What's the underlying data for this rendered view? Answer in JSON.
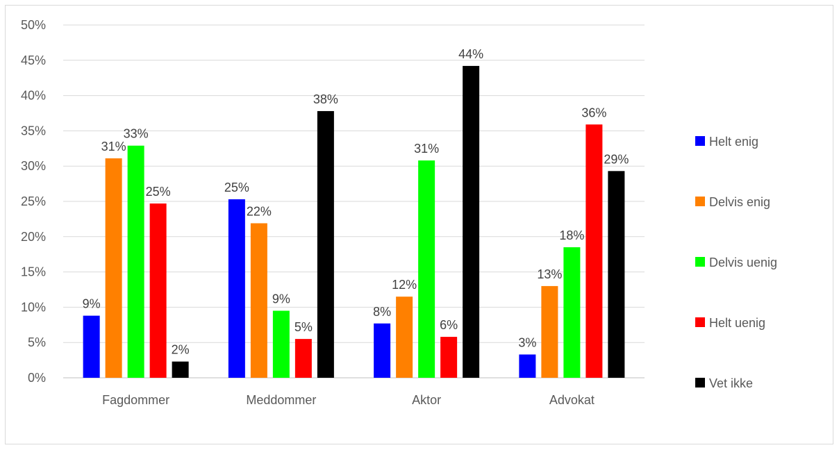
{
  "chart_data": {
    "type": "bar",
    "categories": [
      "Fagdommer",
      "Meddommer",
      "Aktor",
      "Advokat"
    ],
    "series": [
      {
        "name": "Helt enig",
        "color": "#0000ff",
        "values": [
          8.8,
          25.3,
          7.7,
          3.3
        ],
        "labels": [
          "9%",
          "25%",
          "8%",
          "3%"
        ]
      },
      {
        "name": "Delvis enig",
        "color": "#ff8000",
        "values": [
          31.1,
          21.9,
          11.5,
          13.0
        ],
        "labels": [
          "31%",
          "22%",
          "12%",
          "13%"
        ]
      },
      {
        "name": "Delvis uenig",
        "color": "#00ff00",
        "values": [
          32.9,
          9.5,
          30.8,
          18.5
        ],
        "labels": [
          "33%",
          "9%",
          "31%",
          "18%"
        ]
      },
      {
        "name": "Helt uenig",
        "color": "#ff0000",
        "values": [
          24.7,
          5.5,
          5.8,
          35.9
        ],
        "labels": [
          "25%",
          "5%",
          "6%",
          "36%"
        ]
      },
      {
        "name": "Vet ikke",
        "color": "#000000",
        "values": [
          2.3,
          37.8,
          44.2,
          29.3
        ],
        "labels": [
          "2%",
          "38%",
          "44%",
          "29%"
        ]
      }
    ],
    "y_ticks": [
      "0%",
      "5%",
      "10%",
      "15%",
      "20%",
      "25%",
      "30%",
      "35%",
      "40%",
      "45%",
      "50%"
    ],
    "ylim": [
      0,
      50
    ],
    "grid": true,
    "legend_position": "right"
  }
}
